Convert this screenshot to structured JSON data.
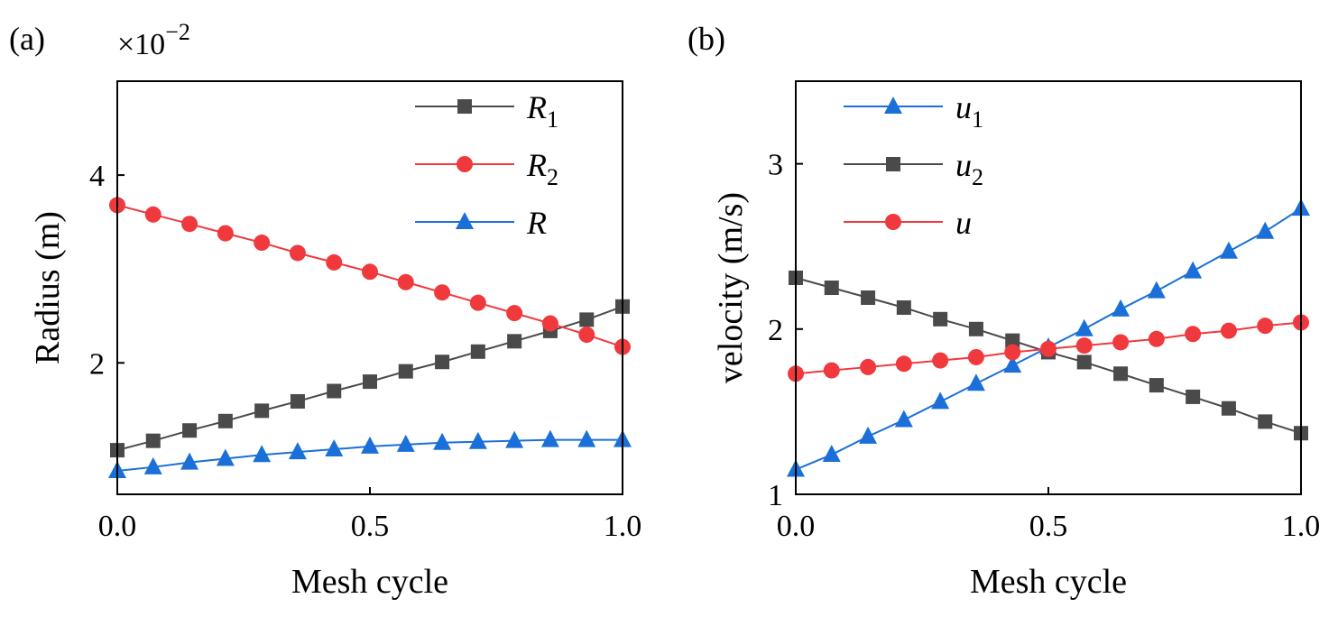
{
  "chart_data": [
    {
      "type": "line",
      "panel_label": "(a)",
      "xlabel": "Mesh cycle",
      "ylabel": "Radius (m)",
      "multiplier": "×10",
      "multiplier_exp": "−2",
      "xlim": [
        0,
        1
      ],
      "ylim": [
        0.6,
        5
      ],
      "xticks": [
        0,
        0.5,
        1
      ],
      "xtick_labels": [
        "0.0",
        "0.5",
        "1.0"
      ],
      "yticks": [
        2,
        4
      ],
      "ytick_labels": [
        "2",
        "4"
      ],
      "x": [
        0.0,
        0.071,
        0.143,
        0.214,
        0.286,
        0.357,
        0.429,
        0.5,
        0.571,
        0.643,
        0.714,
        0.786,
        0.857,
        0.929,
        1.0
      ],
      "series": [
        {
          "name": "R1",
          "legend_main": "R",
          "legend_sub": "1",
          "color": "#4a4a4a",
          "marker": "square",
          "values": [
            1.07,
            1.17,
            1.28,
            1.38,
            1.49,
            1.59,
            1.7,
            1.8,
            1.91,
            2.01,
            2.12,
            2.23,
            2.34,
            2.46,
            2.6
          ]
        },
        {
          "name": "R2",
          "legend_main": "R",
          "legend_sub": "2",
          "color": "#f0393d",
          "marker": "circle",
          "values": [
            3.68,
            3.58,
            3.48,
            3.38,
            3.28,
            3.17,
            3.07,
            2.97,
            2.86,
            2.75,
            2.64,
            2.53,
            2.42,
            2.3,
            2.17
          ]
        },
        {
          "name": "R",
          "legend_main": "R",
          "legend_sub": "",
          "color": "#1a70d8",
          "marker": "triangle",
          "values": [
            0.85,
            0.89,
            0.94,
            0.98,
            1.02,
            1.05,
            1.08,
            1.11,
            1.13,
            1.15,
            1.16,
            1.17,
            1.18,
            1.18,
            1.18
          ]
        }
      ]
    },
    {
      "type": "line",
      "panel_label": "(b)",
      "xlabel": "Mesh cycle",
      "ylabel": "velocity (m/s)",
      "xlim": [
        0,
        1
      ],
      "ylim": [
        1,
        3.5
      ],
      "xticks": [
        0,
        0.5,
        1
      ],
      "xtick_labels": [
        "0.0",
        "0.5",
        "1.0"
      ],
      "yticks": [
        1,
        2,
        3
      ],
      "ytick_labels": [
        "1",
        "2",
        "3"
      ],
      "x": [
        0.0,
        0.071,
        0.143,
        0.214,
        0.286,
        0.357,
        0.429,
        0.5,
        0.571,
        0.643,
        0.714,
        0.786,
        0.857,
        0.929,
        1.0
      ],
      "series": [
        {
          "name": "u1",
          "legend_main": "u",
          "legend_sub": "1",
          "color": "#1a70d8",
          "marker": "triangle",
          "values": [
            1.15,
            1.24,
            1.35,
            1.45,
            1.56,
            1.67,
            1.78,
            1.89,
            2.0,
            2.12,
            2.23,
            2.35,
            2.47,
            2.59,
            2.73
          ]
        },
        {
          "name": "u2",
          "legend_main": "u",
          "legend_sub": "2",
          "color": "#4a4a4a",
          "marker": "square",
          "values": [
            2.31,
            2.25,
            2.19,
            2.13,
            2.06,
            2.0,
            1.93,
            1.86,
            1.8,
            1.73,
            1.66,
            1.59,
            1.52,
            1.44,
            1.37
          ]
        },
        {
          "name": "u",
          "legend_main": "u",
          "legend_sub": "",
          "color": "#f0393d",
          "marker": "circle",
          "values": [
            1.73,
            1.75,
            1.77,
            1.79,
            1.81,
            1.83,
            1.86,
            1.88,
            1.9,
            1.92,
            1.94,
            1.97,
            1.99,
            2.02,
            2.04
          ]
        }
      ]
    }
  ]
}
